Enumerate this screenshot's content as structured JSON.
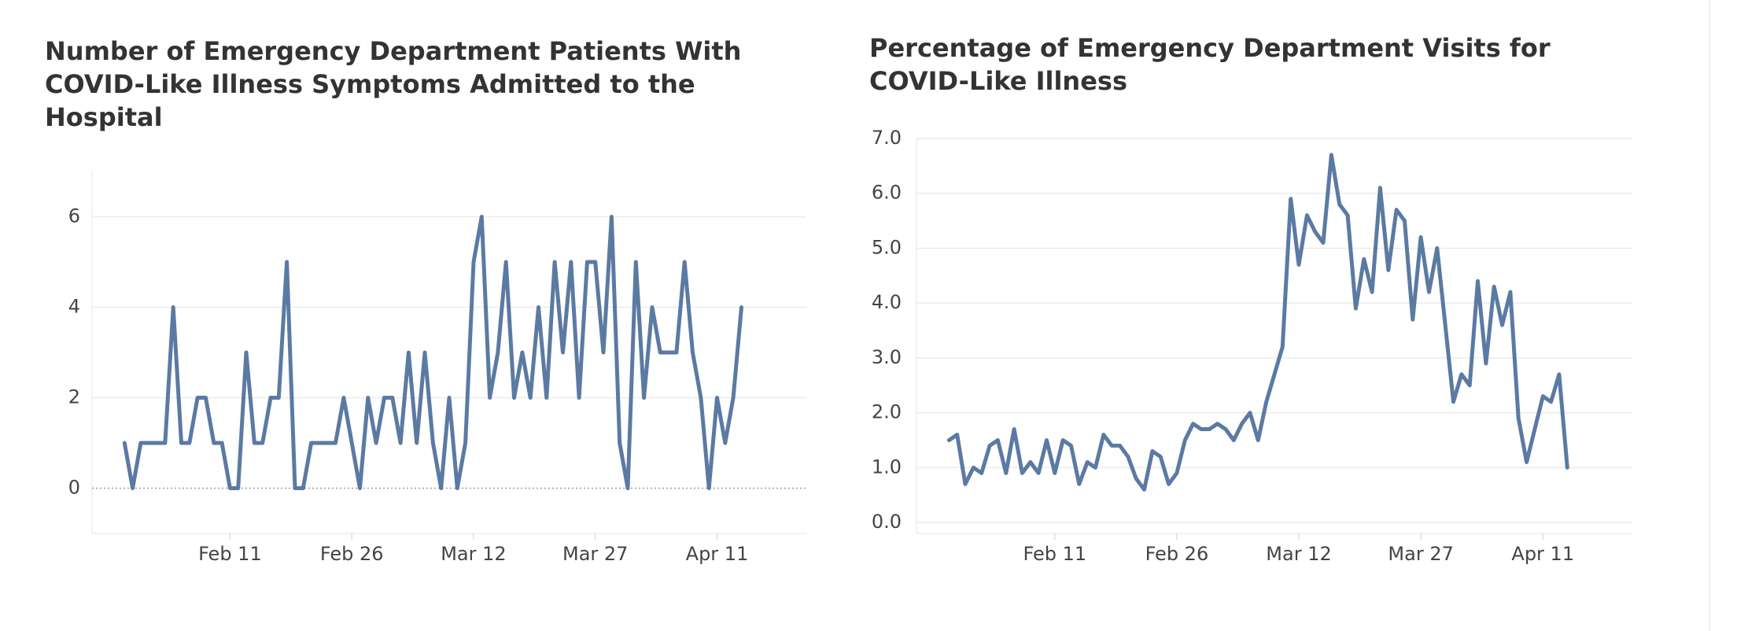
{
  "chart_data": [
    {
      "type": "line",
      "title": "Number of Emergency Department Patients With COVID-Like Illness Symptoms Admitted to the Hospital",
      "xlabel": "",
      "ylabel": "",
      "x_start": "2020-01-29",
      "x_tick_labels": [
        {
          "date": "2020-02-11",
          "label": "Feb 11"
        },
        {
          "date": "2020-02-26",
          "label": "Feb 26"
        },
        {
          "date": "2020-03-12",
          "label": "Mar 12"
        },
        {
          "date": "2020-03-27",
          "label": "Mar 27"
        },
        {
          "date": "2020-04-11",
          "label": "Apr 11"
        }
      ],
      "y_ticks": [
        0,
        2,
        4,
        6
      ],
      "y_tick_format": "int",
      "xlim": [
        "2020-01-25",
        "2020-04-22"
      ],
      "ylim": [
        -1,
        7
      ],
      "zero_line": true,
      "grid": true,
      "line_color": "#5b7aa3",
      "series": [
        {
          "values": [
            1,
            0,
            1,
            1,
            1,
            1,
            4,
            1,
            1,
            2,
            2,
            1,
            1,
            0,
            0,
            3,
            1,
            1,
            2,
            2,
            5,
            0,
            0,
            1,
            1,
            1,
            1,
            2,
            1,
            0,
            2,
            1,
            2,
            2,
            1,
            3,
            1,
            3,
            1,
            0,
            2,
            0,
            1,
            5,
            6,
            2,
            3,
            5,
            2,
            3,
            2,
            4,
            2,
            5,
            3,
            5,
            2,
            5,
            5,
            3,
            6,
            1,
            0,
            5,
            2,
            4,
            3,
            3,
            3,
            5,
            3,
            2,
            0,
            2,
            1,
            2,
            4
          ]
        }
      ]
    },
    {
      "type": "line",
      "title": "Percentage of Emergency Department Visits for COVID-Like Illness",
      "xlabel": "",
      "ylabel": "",
      "x_start": "2020-01-29",
      "x_tick_labels": [
        {
          "date": "2020-02-11",
          "label": "Feb 11"
        },
        {
          "date": "2020-02-26",
          "label": "Feb 26"
        },
        {
          "date": "2020-03-12",
          "label": "Mar 12"
        },
        {
          "date": "2020-03-27",
          "label": "Mar 27"
        },
        {
          "date": "2020-04-11",
          "label": "Apr 11"
        }
      ],
      "y_ticks": [
        0.0,
        1.0,
        2.0,
        3.0,
        4.0,
        5.0,
        6.0,
        7.0
      ],
      "y_tick_format": "fixed1",
      "xlim": [
        "2020-01-25",
        "2020-04-22"
      ],
      "ylim": [
        -0.2,
        7.0
      ],
      "zero_line": false,
      "grid": true,
      "line_color": "#5b7aa3",
      "series": [
        {
          "values": [
            1.5,
            1.6,
            0.7,
            1.0,
            0.9,
            1.4,
            1.5,
            0.9,
            1.7,
            0.9,
            1.1,
            0.9,
            1.5,
            0.9,
            1.5,
            1.4,
            0.7,
            1.1,
            1.0,
            1.6,
            1.4,
            1.4,
            1.2,
            0.8,
            0.6,
            1.3,
            1.2,
            0.7,
            0.9,
            1.5,
            1.8,
            1.7,
            1.7,
            1.8,
            1.7,
            1.5,
            1.8,
            2.0,
            1.5,
            2.2,
            2.7,
            3.2,
            5.9,
            4.7,
            5.6,
            5.3,
            5.1,
            6.7,
            5.8,
            5.6,
            3.9,
            4.8,
            4.2,
            6.1,
            4.6,
            5.7,
            5.5,
            3.7,
            5.2,
            4.2,
            5.0,
            3.6,
            2.2,
            2.7,
            2.5,
            4.4,
            2.9,
            4.3,
            3.6,
            4.2,
            1.9,
            1.1,
            1.7,
            2.3,
            2.2,
            2.7,
            1.0
          ]
        }
      ]
    }
  ]
}
